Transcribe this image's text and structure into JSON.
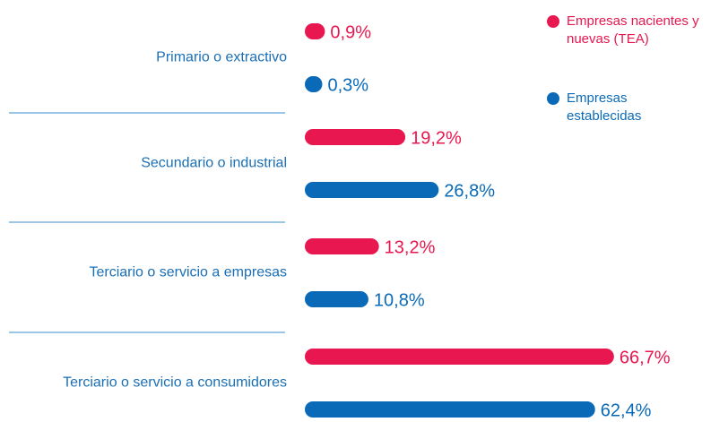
{
  "chart_data": {
    "type": "bar",
    "orientation": "horizontal",
    "categories": [
      "Primario o extractivo",
      "Secundario o industrial",
      "Terciario o servicio a empresas",
      "Terciario o servicio a consumidores"
    ],
    "series": [
      {
        "name": "Empresas nacientes y nuevas (TEA)",
        "color": "#e8174f",
        "values": [
          0.9,
          19.2,
          13.2,
          66.7
        ],
        "value_labels": [
          "0,9%",
          "19,2%",
          "13,2%",
          "66,7%"
        ]
      },
      {
        "name": "Empresas establecidas",
        "color": "#0a6ab8",
        "values": [
          0.3,
          26.8,
          10.8,
          62.4
        ],
        "value_labels": [
          "0,3%",
          "26,8%",
          "10,8%",
          "62,4%"
        ]
      }
    ]
  }
}
